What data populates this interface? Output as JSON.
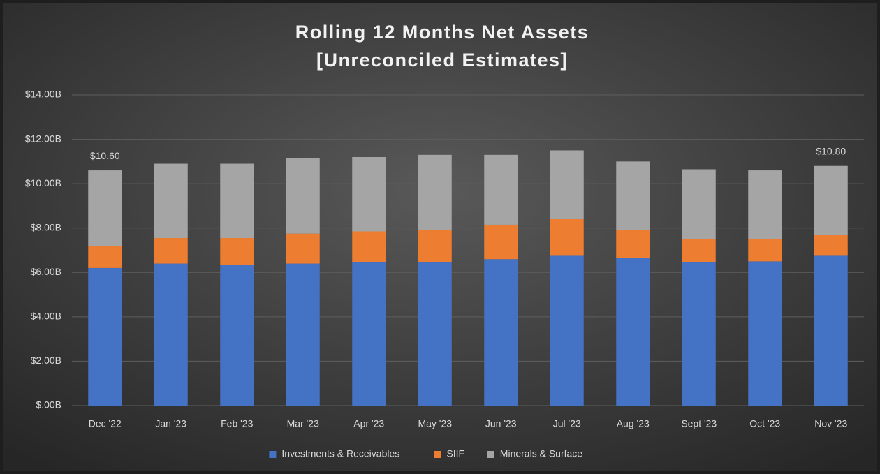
{
  "chart_data": {
    "type": "stacked_bar",
    "title": "Rolling 12 Months Net Assets",
    "subtitle": "[Unreconciled Estimates]",
    "categories": [
      "Dec '22",
      "Jan '23",
      "Feb '23",
      "Mar '23",
      "Apr '23",
      "May '23",
      "Jun '23",
      "Jul '23",
      "Aug '23",
      "Sept '23",
      "Oct '23",
      "Nov '23"
    ],
    "series": [
      {
        "name": "Investments & Receivables",
        "color": "#4472c4",
        "values": [
          6.2,
          6.4,
          6.35,
          6.4,
          6.45,
          6.45,
          6.6,
          6.75,
          6.65,
          6.45,
          6.5,
          6.75
        ]
      },
      {
        "name": "SIIF",
        "color": "#ed7d31",
        "values": [
          1.0,
          1.15,
          1.2,
          1.35,
          1.4,
          1.45,
          1.55,
          1.65,
          1.25,
          1.05,
          1.0,
          0.95
        ]
      },
      {
        "name": "Minerals & Surface",
        "color": "#a5a5a5",
        "values": [
          3.4,
          3.35,
          3.35,
          3.4,
          3.35,
          3.4,
          3.15,
          3.1,
          3.1,
          3.15,
          3.1,
          3.1
        ]
      }
    ],
    "ylim": [
      0,
      14
    ],
    "yticks": [
      {
        "value": 0,
        "label": "$.00B"
      },
      {
        "value": 2,
        "label": "$2.00B"
      },
      {
        "value": 4,
        "label": "$4.00B"
      },
      {
        "value": 6,
        "label": "$6.00B"
      },
      {
        "value": 8,
        "label": "$8.00B"
      },
      {
        "value": 10,
        "label": "$10.00B"
      },
      {
        "value": 12,
        "label": "$12.00B"
      },
      {
        "value": 14,
        "label": "$14.00B"
      }
    ],
    "grid": true,
    "legend": "bottom",
    "annotations": [
      {
        "category": "Dec '22",
        "value": 10.6,
        "label": "$10.60"
      },
      {
        "category": "Nov '23",
        "value": 10.8,
        "label": "$10.80"
      }
    ]
  }
}
